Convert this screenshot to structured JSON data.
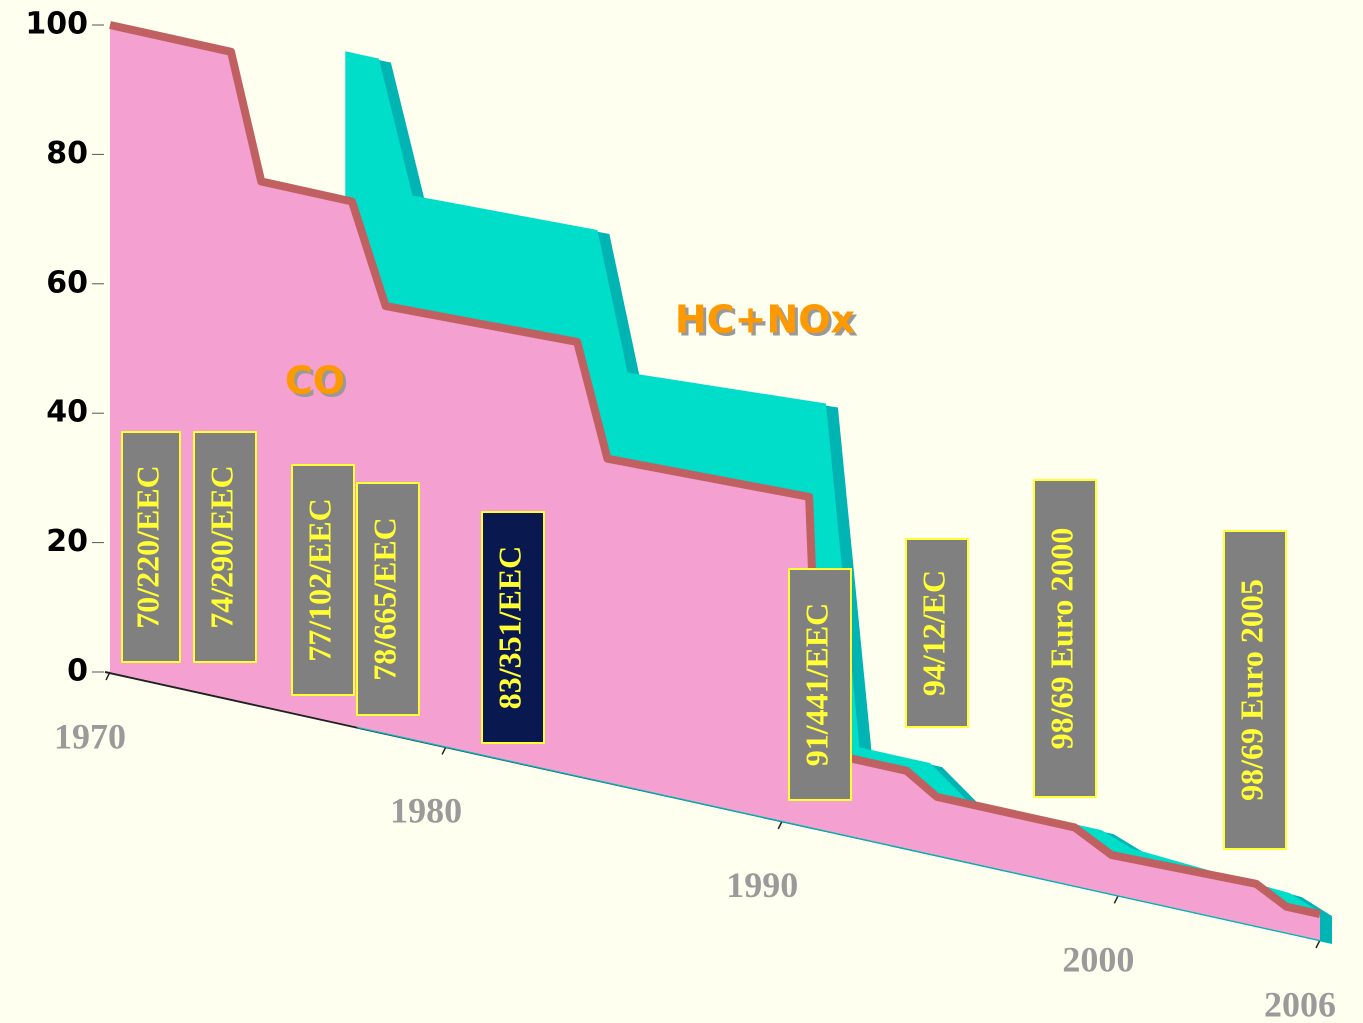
{
  "chart_data": {
    "type": "area3d",
    "xlim": [
      1970,
      2006
    ],
    "xticks": [
      1970,
      1980,
      1990,
      2000,
      2006
    ],
    "ylim": [
      0,
      100
    ],
    "yticks": [
      0,
      20,
      40,
      60,
      80,
      100
    ],
    "series": [
      {
        "name": "HC+NOx",
        "color": "#00ddc8",
        "side_color": "#00b4b4",
        "label_color": "#ff9900",
        "x": [
          1977,
          1978,
          1979,
          1984.5,
          1985.4,
          1991.3,
          1992.3,
          1994.4,
          1995.5,
          1999.5,
          2000.4,
          2005.1,
          2006
        ],
        "values": [
          104,
          104,
          84,
          85,
          64,
          66,
          14,
          14,
          9.5,
          9.5,
          7.7,
          6.2,
          4.3
        ]
      },
      {
        "name": "CO",
        "color": "#f4a0d0",
        "edge_color": "#c06060",
        "label_color": "#ff9900",
        "x": [
          1970,
          1973.6,
          1974.5,
          1977.2,
          1978.2,
          1983.9,
          1984.8,
          1990.8,
          1991.1,
          1993.7,
          1994.6,
          1998.7,
          1999.8,
          2004.1,
          2005,
          2006
        ],
        "values": [
          100,
          100,
          81,
          81,
          66,
          67,
          50,
          51,
          12,
          12,
          9,
          9,
          6,
          6.5,
          4,
          4
        ]
      }
    ],
    "annotations": [
      {
        "text": "70/220/EEC",
        "color": "#808080"
      },
      {
        "text": "74/290/EEC",
        "color": "#808080"
      },
      {
        "text": "77/102/EEC",
        "color": "#808080"
      },
      {
        "text": "78/665/EEC",
        "color": "#808080"
      },
      {
        "text": "83/351/EEC",
        "color": "#0a1850"
      },
      {
        "text": "91/441/EEC",
        "color": "#808080"
      },
      {
        "text": "94/12/EC",
        "color": "#808080"
      },
      {
        "text": "98/69 Euro 2000",
        "color": "#808080"
      },
      {
        "text": "98/69 Euro 2005",
        "color": "#808080"
      }
    ]
  }
}
